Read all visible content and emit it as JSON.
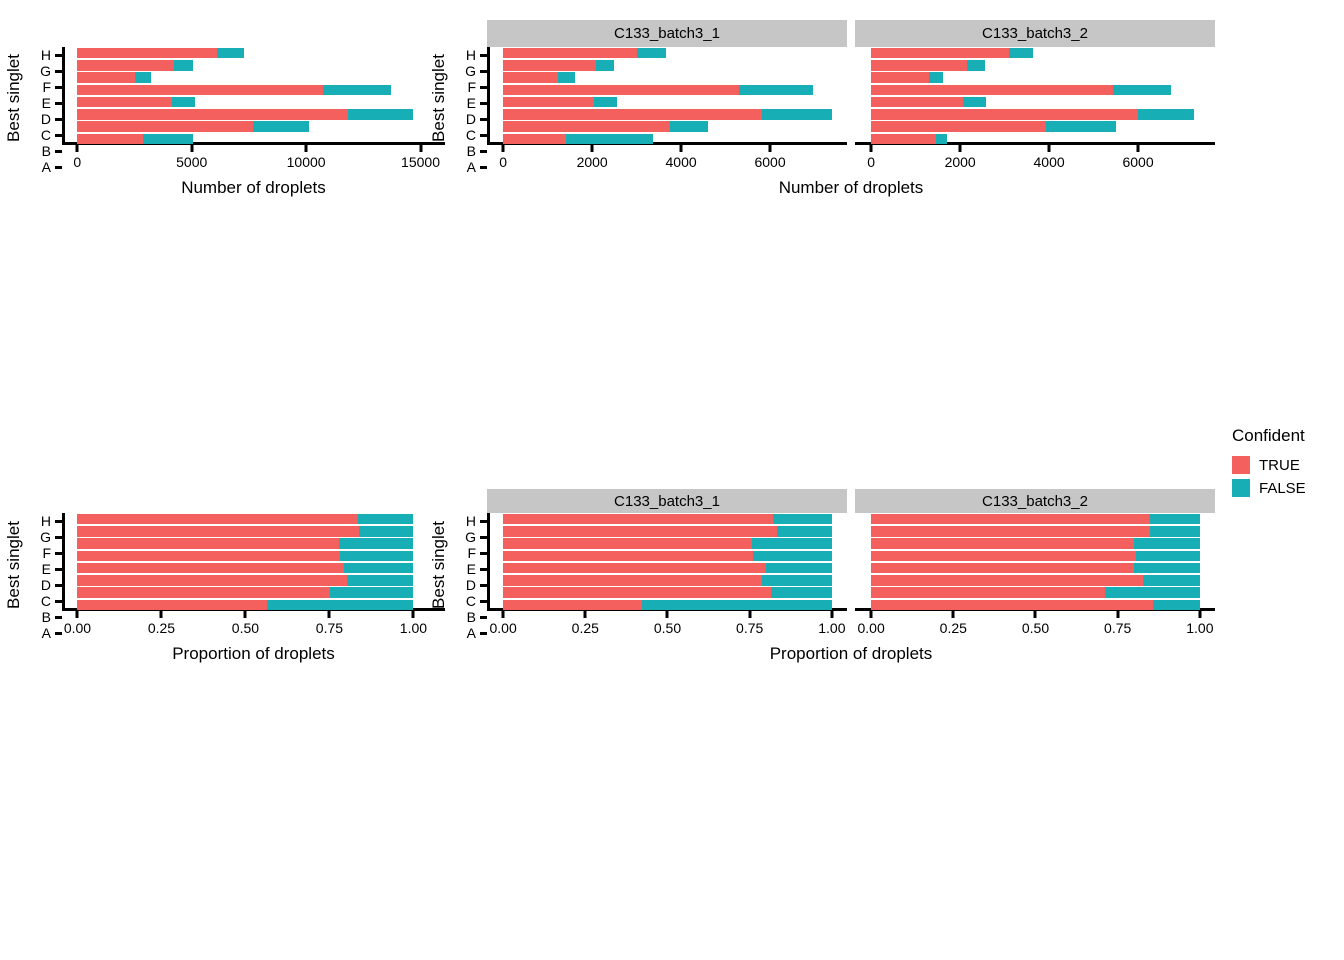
{
  "figure": {
    "background": "#ffffff"
  },
  "colors": {
    "true_fill": "#F4605D",
    "false_fill": "#17AFB5",
    "strip_bg": "#C6C6C6",
    "axis": "#000000"
  },
  "legend": {
    "title": "Confident",
    "entries": [
      {
        "label": "TRUE",
        "color": "#F4605D"
      },
      {
        "label": "FALSE",
        "color": "#17AFB5"
      }
    ]
  },
  "chart_data": [
    {
      "id": "droplet-counts-combined",
      "type": "bar",
      "orientation": "horizontal",
      "stacked": true,
      "grid": false,
      "legend_position": "right-of-figure",
      "categories_top_to_bottom": [
        "H",
        "G",
        "F",
        "E",
        "D",
        "C",
        "B",
        "A"
      ],
      "ylabel": "Best singlet",
      "xlabel": "Number of droplets",
      "x_range": [
        -670,
        16070
      ],
      "xticks": [
        {
          "value": 0,
          "label": "0"
        },
        {
          "value": 5000,
          "label": "5000"
        },
        {
          "value": 10000,
          "label": "10000"
        },
        {
          "value": 15000,
          "label": "15000"
        }
      ],
      "panels": [
        {
          "facet_label": null,
          "series": [
            {
              "name": "TRUE",
              "values": [
                6090,
                4240,
                2520,
                10740,
                4120,
                11830,
                7680,
                2880
              ]
            },
            {
              "name": "FALSE",
              "values": [
                1180,
                810,
                705,
                2980,
                1025,
                2820,
                2440,
                2195
              ]
            }
          ]
        }
      ]
    },
    {
      "id": "droplet-counts-by-batch",
      "type": "bar",
      "orientation": "horizontal",
      "stacked": true,
      "grid": false,
      "legend_position": "right-of-figure",
      "categories_top_to_bottom": [
        "H",
        "G",
        "F",
        "E",
        "D",
        "C",
        "B",
        "A"
      ],
      "ylabel": "Best singlet",
      "xlabel": "Number of droplets",
      "x_range": [
        -364,
        7730
      ],
      "xticks": [
        {
          "value": 0,
          "label": "0"
        },
        {
          "value": 2000,
          "label": "2000"
        },
        {
          "value": 4000,
          "label": "4000"
        },
        {
          "value": 6000,
          "label": "6000"
        }
      ],
      "panels": [
        {
          "facet_label": "C133_batch3_1",
          "series": [
            {
              "name": "TRUE",
              "values": [
                3000,
                2080,
                1230,
                5300,
                2050,
                5820,
                3760,
                1420
              ]
            },
            {
              "name": "FALSE",
              "values": [
                650,
                420,
                380,
                1670,
                510,
                1570,
                850,
                1950
              ]
            }
          ]
        },
        {
          "facet_label": "C133_batch3_2",
          "series": [
            {
              "name": "TRUE",
              "values": [
                3090,
                2160,
                1290,
                5440,
                2070,
                6010,
                3920,
                1460
              ]
            },
            {
              "name": "FALSE",
              "values": [
                550,
                390,
                325,
                1310,
                515,
                1250,
                1590,
                245
              ]
            }
          ]
        }
      ]
    },
    {
      "id": "droplet-proportions-combined",
      "type": "bar",
      "orientation": "horizontal",
      "stacked": true,
      "grid": false,
      "legend_position": "right-of-figure",
      "categories_top_to_bottom": [
        "H",
        "G",
        "F",
        "E",
        "D",
        "C",
        "B",
        "A"
      ],
      "ylabel": "Best singlet",
      "xlabel": "Proportion of droplets",
      "x_range": [
        -0.046,
        1.094
      ],
      "xticks": [
        {
          "value": 0,
          "label": "0.00"
        },
        {
          "value": 0.25,
          "label": "0.25"
        },
        {
          "value": 0.5,
          "label": "0.50"
        },
        {
          "value": 0.75,
          "label": "0.75"
        },
        {
          "value": 1.0,
          "label": "1.00"
        }
      ],
      "panels": [
        {
          "facet_label": null,
          "series": [
            {
              "name": "TRUE",
              "values": [
                0.835,
                0.838,
                0.779,
                0.781,
                0.794,
                0.803,
                0.753,
                0.564
              ]
            },
            {
              "name": "FALSE",
              "values": [
                0.165,
                0.162,
                0.221,
                0.219,
                0.206,
                0.197,
                0.247,
                0.436
              ]
            }
          ]
        }
      ]
    },
    {
      "id": "droplet-proportions-by-batch",
      "type": "bar",
      "orientation": "horizontal",
      "stacked": true,
      "grid": false,
      "legend_position": "right-of-figure",
      "categories_top_to_bottom": [
        "H",
        "G",
        "F",
        "E",
        "D",
        "C",
        "B",
        "A"
      ],
      "ylabel": "Best singlet",
      "xlabel": "Proportion of droplets",
      "x_range": [
        -0.049,
        1.046
      ],
      "xticks": [
        {
          "value": 0,
          "label": "0.00"
        },
        {
          "value": 0.25,
          "label": "0.25"
        },
        {
          "value": 0.5,
          "label": "0.50"
        },
        {
          "value": 0.75,
          "label": "0.75"
        },
        {
          "value": 1.0,
          "label": "1.00"
        }
      ],
      "panels": [
        {
          "facet_label": "C133_batch3_1",
          "series": [
            {
              "name": "TRUE",
              "values": [
                0.822,
                0.832,
                0.757,
                0.76,
                0.8,
                0.788,
                0.815,
                0.421
              ]
            },
            {
              "name": "FALSE",
              "values": [
                0.178,
                0.168,
                0.243,
                0.24,
                0.2,
                0.212,
                0.185,
                0.579
              ]
            }
          ]
        },
        {
          "facet_label": "C133_batch3_2",
          "series": [
            {
              "name": "TRUE",
              "values": [
                0.849,
                0.849,
                0.8,
                0.806,
                0.801,
                0.828,
                0.711,
                0.856
              ]
            },
            {
              "name": "FALSE",
              "values": [
                0.151,
                0.151,
                0.2,
                0.194,
                0.199,
                0.172,
                0.289,
                0.144
              ]
            }
          ]
        }
      ]
    }
  ]
}
